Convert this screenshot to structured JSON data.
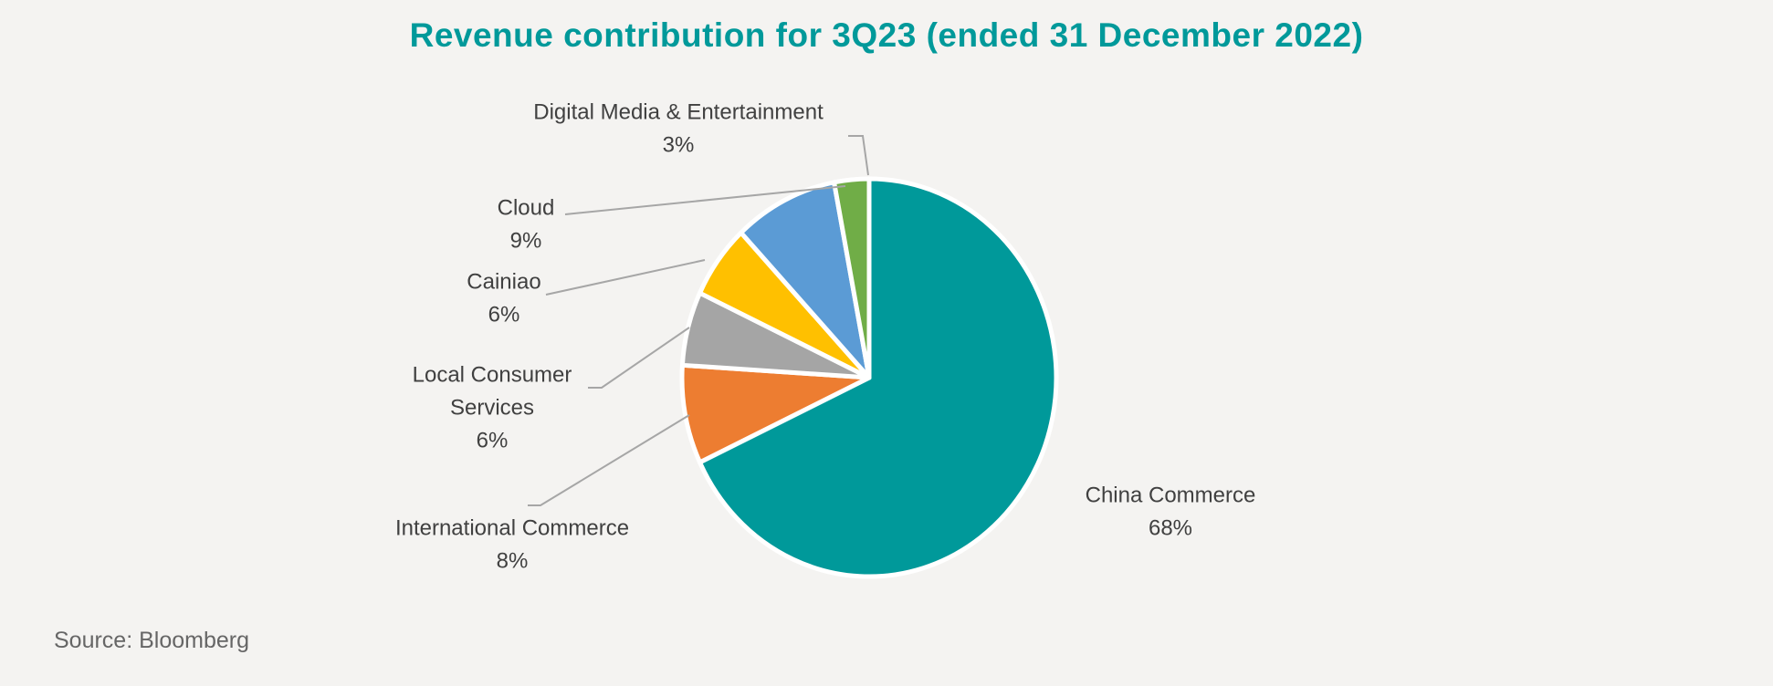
{
  "chart_data": {
    "type": "pie",
    "title": "Revenue contribution for 3Q23 (ended 31 December 2022)",
    "start_angle": "top, clockwise",
    "slices": [
      {
        "label": "China Commerce",
        "value": 68,
        "value_label": "68%",
        "color": "#00999a"
      },
      {
        "label": "International Commerce",
        "value": 8,
        "value_label": "8%",
        "color": "#ed7d31"
      },
      {
        "label": "Local Consumer Services",
        "value": 6,
        "value_label": "6%",
        "color": "#a5a5a5"
      },
      {
        "label": "Cainiao",
        "value": 6,
        "value_label": "6%",
        "color": "#ffc000"
      },
      {
        "label": "Cloud",
        "value": 9,
        "value_label": "9%",
        "color": "#5b9bd5"
      },
      {
        "label": "Digital Media & Entertainment",
        "value": 3,
        "value_label": "3%",
        "color": "#70ad47"
      }
    ],
    "legend": "none (data labels outside with leader lines)"
  },
  "source": "Source: Bloomberg"
}
